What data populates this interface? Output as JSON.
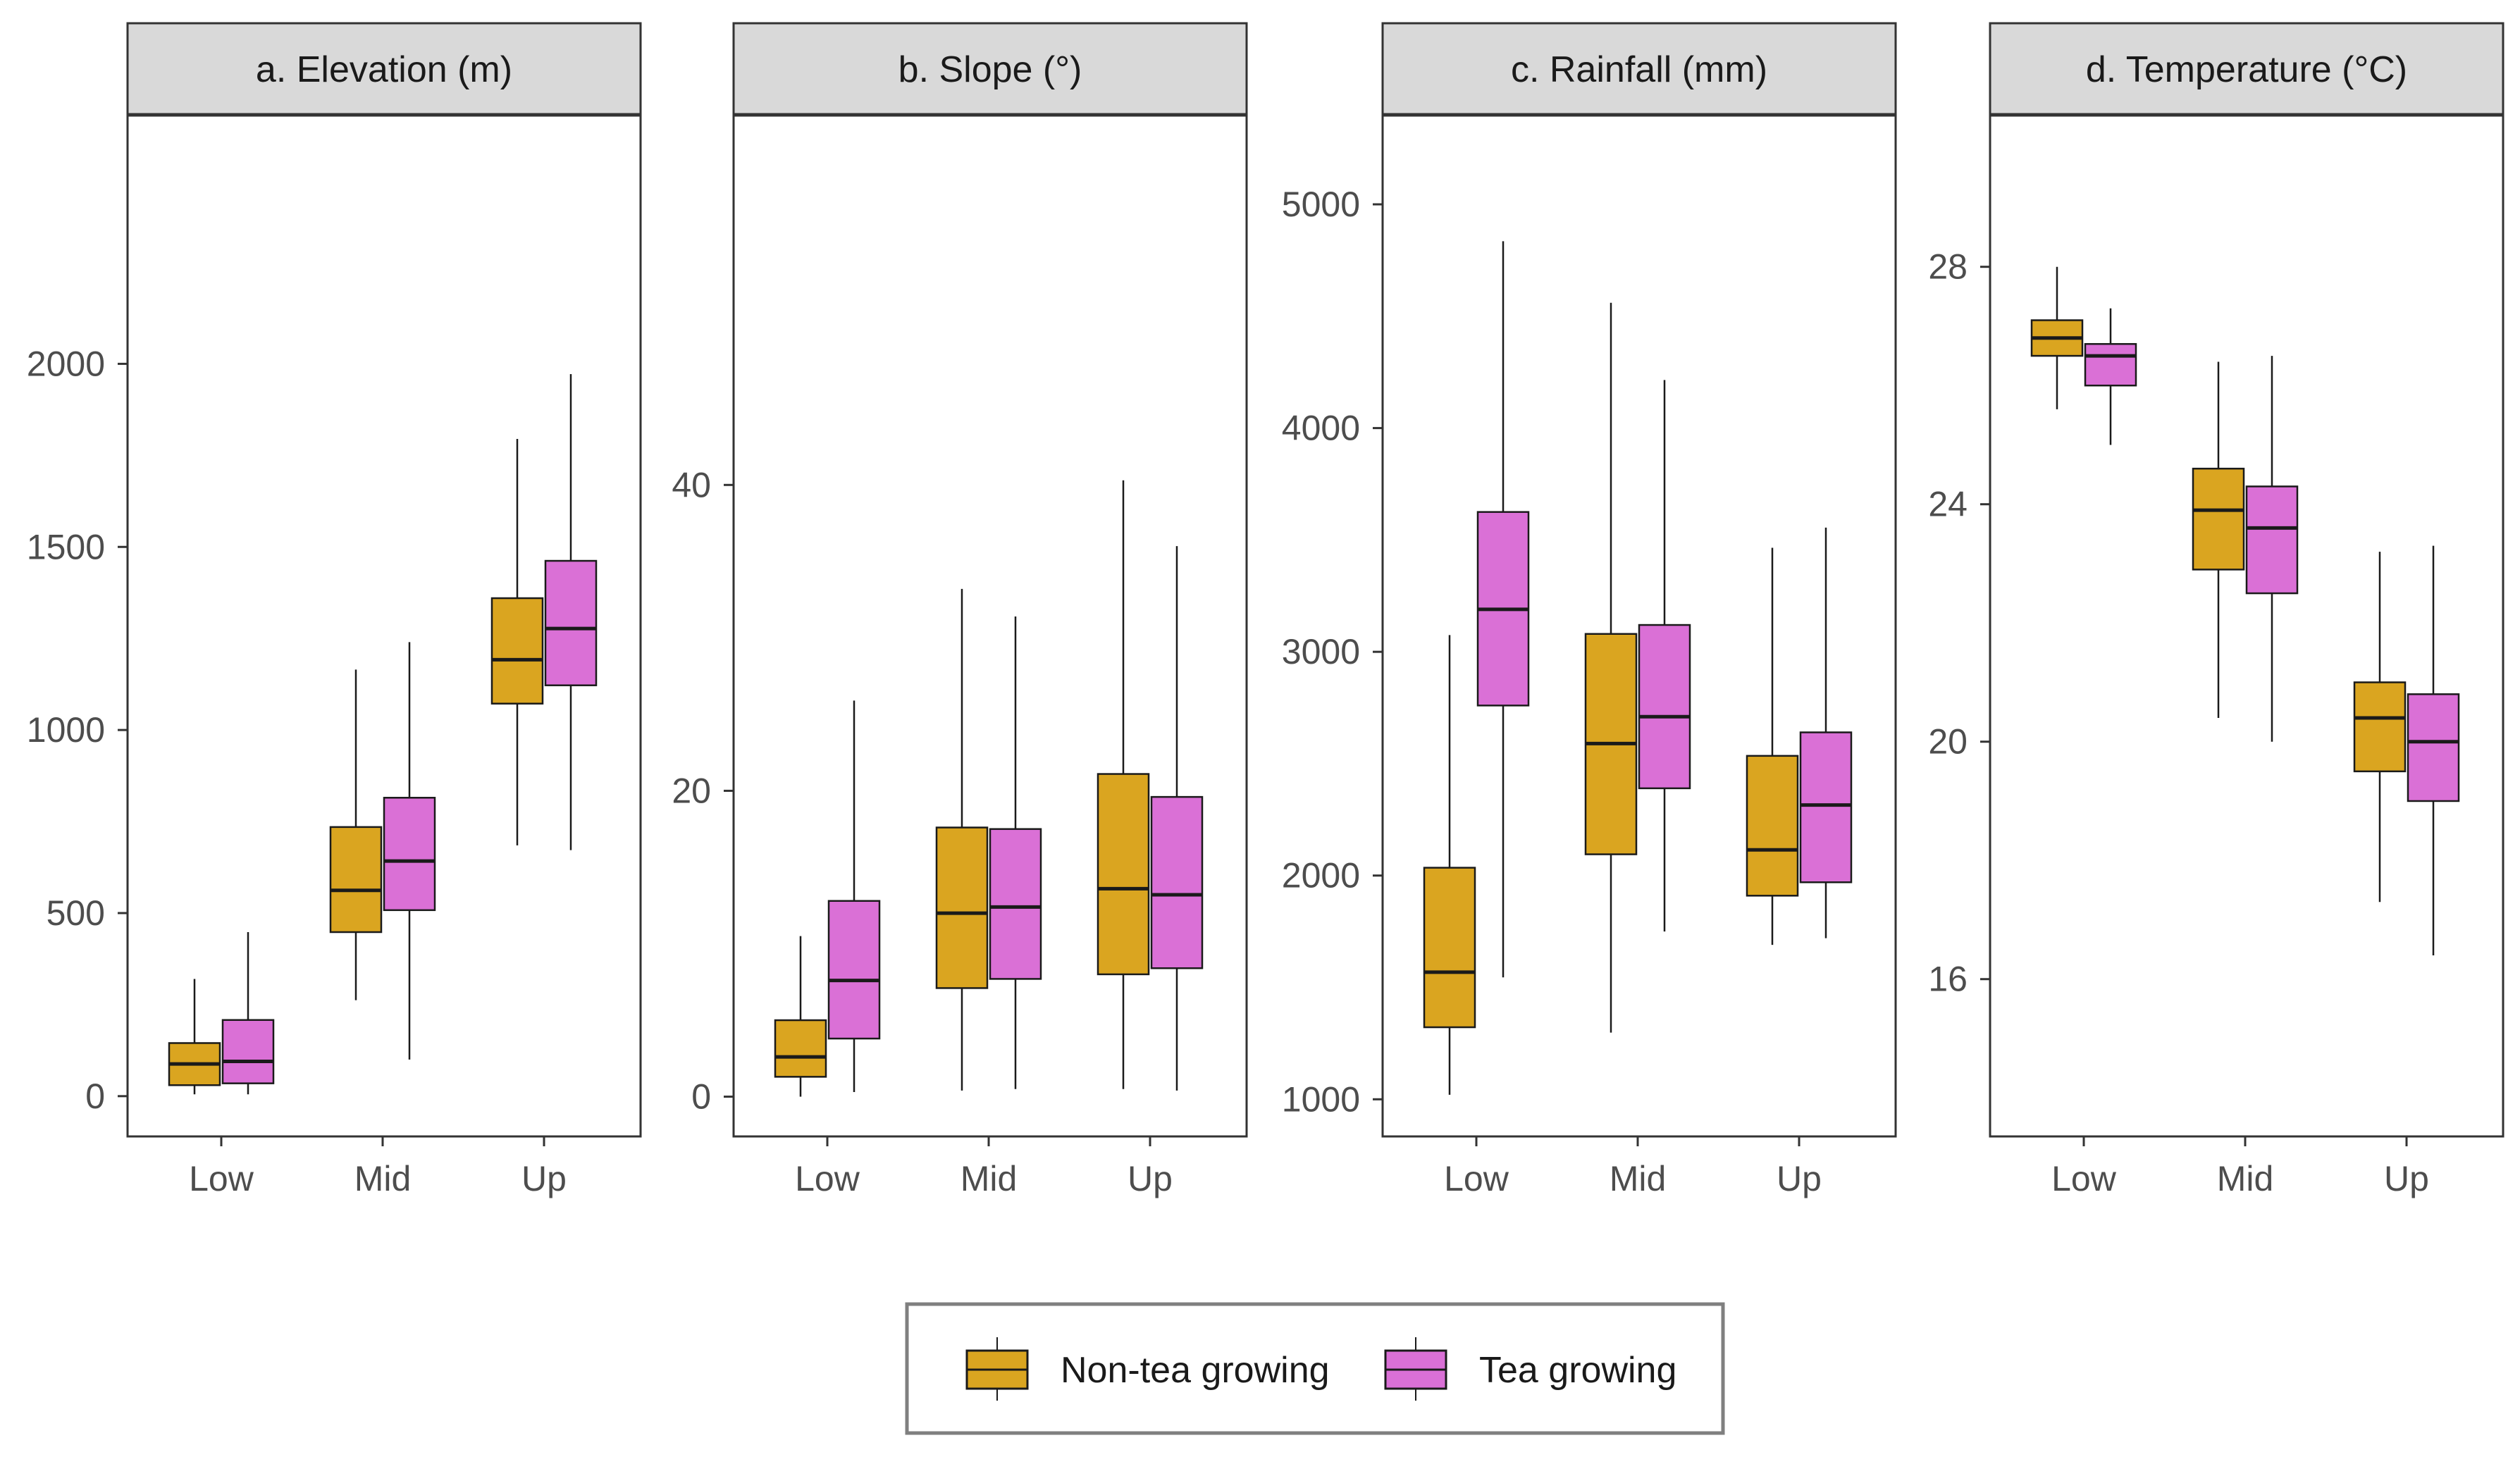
{
  "chart_data": [
    {
      "type": "box",
      "title": "a. Elevation (m)",
      "categories": [
        "Low",
        "Mid",
        "Up"
      ],
      "ylim": [
        -110,
        2680
      ],
      "yticks": [
        0,
        500,
        1000,
        1500,
        2000
      ],
      "series": [
        {
          "name": "Non-tea growing",
          "color": "#DAA520",
          "boxes": [
            {
              "min": 5,
              "q1": 30,
              "median": 88,
              "q3": 145,
              "max": 320
            },
            {
              "min": 262,
              "q1": 448,
              "median": 562,
              "q3": 735,
              "max": 1165
            },
            {
              "min": 685,
              "q1": 1072,
              "median": 1192,
              "q3": 1360,
              "max": 1795
            }
          ]
        },
        {
          "name": "Tea growing",
          "color": "#DA70D6",
          "boxes": [
            {
              "min": 5,
              "q1": 35,
              "median": 95,
              "q3": 208,
              "max": 448
            },
            {
              "min": 100,
              "q1": 508,
              "median": 642,
              "q3": 815,
              "max": 1240
            },
            {
              "min": 672,
              "q1": 1122,
              "median": 1277,
              "q3": 1462,
              "max": 1972
            }
          ]
        }
      ]
    },
    {
      "type": "box",
      "title": "b. Slope (°)",
      "categories": [
        "Low",
        "Mid",
        "Up"
      ],
      "ylim": [
        -2.6,
        64.2
      ],
      "yticks": [
        0,
        20,
        40
      ],
      "series": [
        {
          "name": "Non-tea growing",
          "color": "#DAA520",
          "boxes": [
            {
              "min": 0,
              "q1": 1.3,
              "median": 2.6,
              "q3": 5.0,
              "max": 10.5
            },
            {
              "min": 0.4,
              "q1": 7.1,
              "median": 12.0,
              "q3": 17.6,
              "max": 33.2
            },
            {
              "min": 0.5,
              "q1": 8.0,
              "median": 13.6,
              "q3": 21.1,
              "max": 40.3
            }
          ]
        },
        {
          "name": "Tea growing",
          "color": "#DA70D6",
          "boxes": [
            {
              "min": 0.3,
              "q1": 3.8,
              "median": 7.6,
              "q3": 12.8,
              "max": 25.9
            },
            {
              "min": 0.5,
              "q1": 7.7,
              "median": 12.4,
              "q3": 17.5,
              "max": 31.4
            },
            {
              "min": 0.4,
              "q1": 8.4,
              "median": 13.2,
              "q3": 19.6,
              "max": 36.0
            }
          ]
        }
      ]
    },
    {
      "type": "box",
      "title": "c. Rainfall (mm)",
      "categories": [
        "Low",
        "Mid",
        "Up"
      ],
      "ylim": [
        834,
        5400
      ],
      "yticks": [
        1000,
        2000,
        3000,
        4000,
        5000
      ],
      "series": [
        {
          "name": "Non-tea growing",
          "color": "#DAA520",
          "boxes": [
            {
              "min": 1020,
              "q1": 1322,
              "median": 1568,
              "q3": 2035,
              "max": 3075
            },
            {
              "min": 1298,
              "q1": 2095,
              "median": 2590,
              "q3": 3080,
              "max": 4560
            },
            {
              "min": 1690,
              "q1": 1910,
              "median": 2115,
              "q3": 2535,
              "max": 3465
            }
          ]
        },
        {
          "name": "Tea growing",
          "color": "#DA70D6",
          "boxes": [
            {
              "min": 1545,
              "q1": 2760,
              "median": 3190,
              "q3": 3625,
              "max": 4835
            },
            {
              "min": 1750,
              "q1": 2390,
              "median": 2710,
              "q3": 3120,
              "max": 4215
            },
            {
              "min": 1720,
              "q1": 1970,
              "median": 2315,
              "q3": 2640,
              "max": 3555
            }
          ]
        }
      ]
    },
    {
      "type": "box",
      "title": "d. Temperature (°C)",
      "categories": [
        "Low",
        "Mid",
        "Up"
      ],
      "ylim": [
        13.35,
        30.56
      ],
      "yticks": [
        16,
        20,
        24,
        28
      ],
      "series": [
        {
          "name": "Non-tea growing",
          "color": "#DAA520",
          "boxes": [
            {
              "min": 25.6,
              "q1": 26.5,
              "median": 26.8,
              "q3": 27.1,
              "max": 28.0
            },
            {
              "min": 20.4,
              "q1": 22.9,
              "median": 23.9,
              "q3": 24.6,
              "max": 26.4
            },
            {
              "min": 17.3,
              "q1": 19.5,
              "median": 20.4,
              "q3": 21.0,
              "max": 23.2
            }
          ]
        },
        {
          "name": "Tea growing",
          "color": "#DA70D6",
          "boxes": [
            {
              "min": 25.0,
              "q1": 26.0,
              "median": 26.5,
              "q3": 26.7,
              "max": 27.3
            },
            {
              "min": 20.0,
              "q1": 22.5,
              "median": 23.6,
              "q3": 24.3,
              "max": 26.5
            },
            {
              "min": 16.4,
              "q1": 19.0,
              "median": 20.0,
              "q3": 20.8,
              "max": 23.3
            }
          ]
        }
      ]
    }
  ],
  "legend": {
    "items": [
      {
        "label": "Non-tea growing",
        "color": "#DAA520"
      },
      {
        "label": "Tea growing",
        "color": "#DA70D6"
      }
    ]
  }
}
